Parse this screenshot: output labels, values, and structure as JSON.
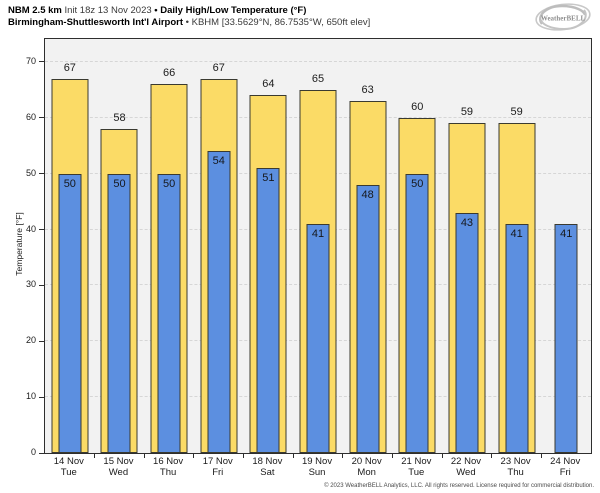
{
  "header": {
    "line1": [
      {
        "text": "NBM 2.5 km",
        "bold": true
      },
      {
        "text": "Init 18z 13 Nov 2023",
        "bold": false
      },
      {
        "text": "• Daily High/Low Temperature (°F)",
        "bold": true
      }
    ],
    "line2": [
      {
        "text": "Birmingham-Shuttlesworth Int'l Airport",
        "bold": true
      },
      {
        "text": "• KBHM [33.5629°N, 86.7535°W, 650ft elev]",
        "bold": false
      }
    ]
  },
  "logo": {
    "text": "WeatherBELL"
  },
  "footer": {
    "copyright": "© 2023 WeatherBELL Analytics, LLC. All rights reserved. License required for commercial distribution."
  },
  "colors": {
    "high_bar": "#fbdb66",
    "low_bar": "#5c8fe0",
    "bar_border": "#3a3a30",
    "plot_background": "#f2f2f2",
    "gridline": "#d6d6d6"
  },
  "chart_data": {
    "type": "bar",
    "title": "NBM 2.5 km Init 18z 13 Nov 2023 • Daily High/Low Temperature (°F)",
    "subtitle": "Birmingham-Shuttlesworth Int'l Airport • KBHM [33.5629°N, 86.7535°W, 650ft elev]",
    "ylabel": "Temperature [°F]",
    "ylim": [
      0,
      74
    ],
    "yticks": [
      0,
      10,
      20,
      30,
      40,
      50,
      60,
      70
    ],
    "grid": true,
    "legend_position": "none",
    "categories": [
      {
        "date": "14 Nov",
        "day": "Tue"
      },
      {
        "date": "15 Nov",
        "day": "Wed"
      },
      {
        "date": "16 Nov",
        "day": "Thu"
      },
      {
        "date": "17 Nov",
        "day": "Fri"
      },
      {
        "date": "18 Nov",
        "day": "Sat"
      },
      {
        "date": "19 Nov",
        "day": "Sun"
      },
      {
        "date": "20 Nov",
        "day": "Mon"
      },
      {
        "date": "21 Nov",
        "day": "Tue"
      },
      {
        "date": "22 Nov",
        "day": "Wed"
      },
      {
        "date": "23 Nov",
        "day": "Thu"
      },
      {
        "date": "24 Nov",
        "day": "Fri"
      }
    ],
    "series": [
      {
        "name": "Daily High",
        "color": "#fbdb66",
        "values": [
          67,
          58,
          66,
          67,
          64,
          65,
          63,
          60,
          59,
          59,
          null
        ]
      },
      {
        "name": "Daily Low",
        "color": "#5c8fe0",
        "values": [
          50,
          50,
          50,
          54,
          51,
          41,
          48,
          50,
          43,
          41,
          41
        ]
      }
    ]
  }
}
